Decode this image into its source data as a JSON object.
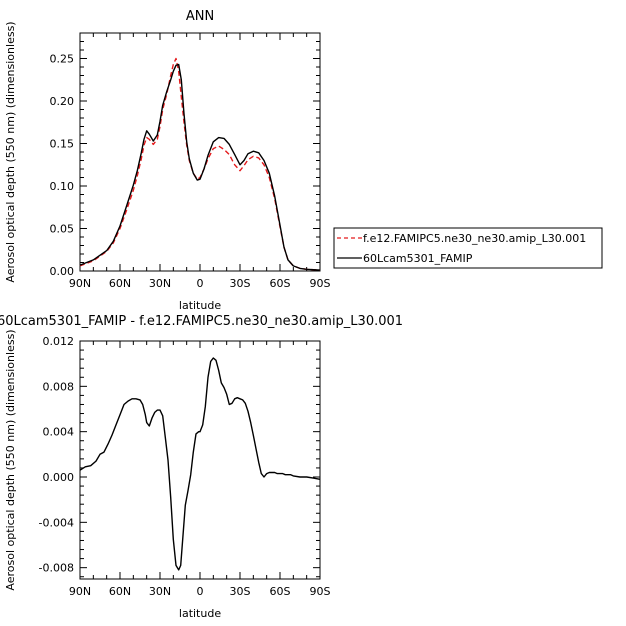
{
  "chart_data": [
    {
      "type": "line",
      "title": "ANN",
      "xlabel": "latitude",
      "ylabel": "Aerosol optical depth (550 nm) (dimensionless)",
      "xlim": [
        90,
        -90
      ],
      "ylim": [
        0,
        0.28
      ],
      "xticks": [
        90,
        60,
        30,
        0,
        -30,
        -60,
        -90
      ],
      "xticklabels": [
        "90N",
        "60N",
        "30N",
        "0",
        "30S",
        "60S",
        "90S"
      ],
      "yticks": [
        0,
        0.05,
        0.1,
        0.15,
        0.2,
        0.25
      ],
      "yticklabels": [
        "0.00",
        "0.05",
        "0.10",
        "0.15",
        "0.20",
        "0.25"
      ],
      "legend_position": "right",
      "series": [
        {
          "name": "f.e12.FAMIPC5.ne30_ne30.amip_L30.001",
          "color": "#e41a1c",
          "dash": "dashed",
          "x": [
            90,
            80,
            70,
            65,
            60,
            55,
            50,
            47,
            44,
            42,
            40,
            38,
            35,
            32,
            30,
            28,
            25,
            22,
            20,
            18,
            16,
            14,
            12,
            10,
            8,
            5,
            2,
            0,
            -3,
            -6,
            -10,
            -14,
            -18,
            -22,
            -26,
            -30,
            -33,
            -36,
            -40,
            -44,
            -48,
            -52,
            -56,
            -60,
            -63,
            -66,
            -70,
            -75,
            -80,
            -90
          ],
          "y": [
            0.006,
            0.012,
            0.023,
            0.033,
            0.05,
            0.072,
            0.095,
            0.112,
            0.132,
            0.148,
            0.157,
            0.155,
            0.149,
            0.155,
            0.17,
            0.19,
            0.208,
            0.23,
            0.243,
            0.25,
            0.235,
            0.205,
            0.175,
            0.148,
            0.13,
            0.115,
            0.108,
            0.11,
            0.12,
            0.132,
            0.144,
            0.147,
            0.143,
            0.137,
            0.125,
            0.118,
            0.124,
            0.131,
            0.135,
            0.133,
            0.125,
            0.11,
            0.085,
            0.052,
            0.028,
            0.013,
            0.006,
            0.003,
            0.002,
            0.001
          ]
        },
        {
          "name": "60Lcam5301_FAMIP",
          "color": "#000000",
          "dash": "solid",
          "x": [
            90,
            80,
            70,
            65,
            60,
            55,
            50,
            47,
            44,
            42,
            40,
            38,
            35,
            32,
            30,
            28,
            25,
            22,
            20,
            18,
            16,
            14,
            12,
            10,
            8,
            5,
            2,
            0,
            -3,
            -6,
            -10,
            -14,
            -18,
            -22,
            -26,
            -30,
            -33,
            -36,
            -40,
            -44,
            -48,
            -52,
            -56,
            -60,
            -63,
            -66,
            -70,
            -75,
            -80,
            -90
          ],
          "y": [
            0.007,
            0.013,
            0.024,
            0.035,
            0.053,
            0.077,
            0.101,
            0.118,
            0.139,
            0.155,
            0.165,
            0.161,
            0.153,
            0.16,
            0.176,
            0.195,
            0.211,
            0.225,
            0.235,
            0.242,
            0.243,
            0.225,
            0.185,
            0.152,
            0.132,
            0.115,
            0.107,
            0.108,
            0.12,
            0.136,
            0.152,
            0.157,
            0.156,
            0.149,
            0.137,
            0.125,
            0.13,
            0.138,
            0.141,
            0.139,
            0.13,
            0.115,
            0.088,
            0.054,
            0.028,
            0.013,
            0.006,
            0.003,
            0.002,
            0.001
          ]
        }
      ]
    },
    {
      "type": "line",
      "title": "60Lcam5301_FAMIP - f.e12.FAMIPC5.ne30_ne30.amip_L30.001",
      "xlabel": "latitude",
      "ylabel": "Aerosol optical depth (550 nm) (dimensionless)",
      "xlim": [
        90,
        -90
      ],
      "ylim": [
        -0.009,
        0.012
      ],
      "xticks": [
        90,
        60,
        30,
        0,
        -30,
        -60,
        -90
      ],
      "xticklabels": [
        "90N",
        "60N",
        "30N",
        "0",
        "30S",
        "60S",
        "90S"
      ],
      "yticks": [
        -0.008,
        -0.004,
        0,
        0.004,
        0.008,
        0.012
      ],
      "yticklabels": [
        "-0.008",
        "-0.004",
        "0.000",
        "0.004",
        "0.008",
        "0.012"
      ],
      "series": [
        {
          "name": "",
          "color": "#000000",
          "dash": "solid",
          "x": [
            90,
            86,
            82,
            78,
            75,
            72,
            69,
            66,
            63,
            60,
            57,
            54,
            51,
            48,
            45,
            43,
            41,
            40,
            38,
            36,
            34,
            32,
            30,
            28,
            26,
            24,
            22,
            20,
            18,
            16,
            14.5,
            13,
            11,
            9,
            7,
            5,
            3,
            1,
            0,
            -2,
            -4,
            -6,
            -8,
            -10,
            -12,
            -14,
            -16,
            -18,
            -20,
            -22,
            -24,
            -26,
            -28,
            -30,
            -32,
            -34,
            -36,
            -38,
            -40,
            -42,
            -44,
            -46,
            -48,
            -50,
            -52,
            -54,
            -56,
            -58,
            -60,
            -62,
            -64,
            -66,
            -68,
            -70,
            -75,
            -80,
            -85,
            -90
          ],
          "y": [
            0.0006,
            0.0009,
            0.001,
            0.0014,
            0.002,
            0.0022,
            0.0029,
            0.0037,
            0.0046,
            0.0055,
            0.0064,
            0.0067,
            0.0069,
            0.0069,
            0.0068,
            0.0064,
            0.0055,
            0.0048,
            0.0045,
            0.0052,
            0.0057,
            0.0059,
            0.0059,
            0.0054,
            0.0035,
            0.0015,
            -0.0018,
            -0.0055,
            -0.0078,
            -0.0082,
            -0.0078,
            -0.0055,
            -0.0025,
            -0.0012,
            0.0002,
            0.0022,
            0.0038,
            0.004,
            0.004,
            0.0046,
            0.0062,
            0.0088,
            0.0102,
            0.0105,
            0.0103,
            0.0094,
            0.0083,
            0.0079,
            0.0073,
            0.0064,
            0.0065,
            0.0069,
            0.007,
            0.0069,
            0.0068,
            0.0065,
            0.0058,
            0.0048,
            0.0037,
            0.0025,
            0.0013,
            0.0003,
            0.0,
            0.0003,
            0.0004,
            0.0004,
            0.0004,
            0.0003,
            0.0003,
            0.0003,
            0.0002,
            0.0002,
            0.0002,
            0.0001,
            0.0,
            0.0,
            -0.0001,
            -0.0002
          ]
        }
      ]
    }
  ]
}
